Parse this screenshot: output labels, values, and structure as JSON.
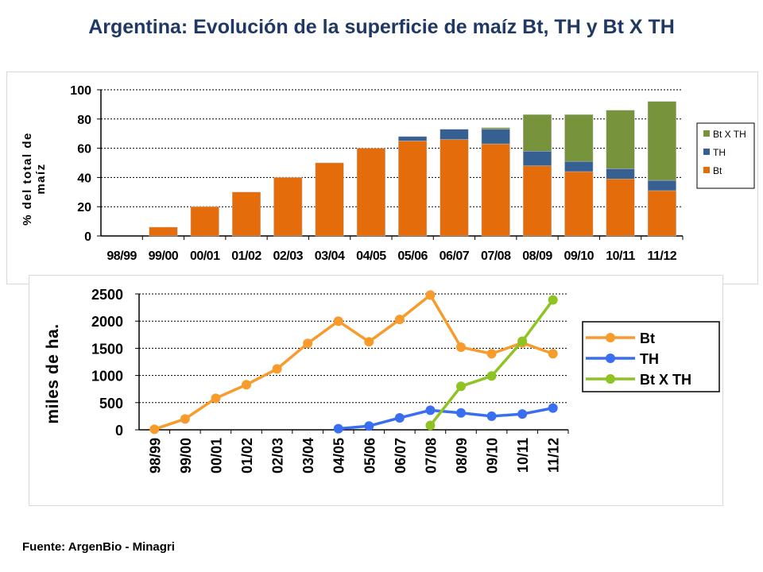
{
  "title": "Argentina: Evolución de la superficie de maíz Bt, TH y Bt X TH",
  "source": "Fuente: ArgenBio - Minagri",
  "colors": {
    "bt_bar": "#e46c0a",
    "th_bar": "#376092",
    "btxth_bar": "#77933c",
    "bt_line": "#f79c2c",
    "th_line": "#3a6ef0",
    "btxth_line": "#8ec324"
  },
  "chart_data": [
    {
      "type": "bar",
      "stacked": true,
      "title": "",
      "ylabel": "% del total de maíz",
      "xlabel": "",
      "ylim": [
        0,
        100
      ],
      "yticks": [
        0,
        20,
        40,
        60,
        80,
        100
      ],
      "grid": true,
      "legend_position": "right",
      "categories": [
        "98/99",
        "99/00",
        "00/01",
        "01/02",
        "02/03",
        "03/04",
        "04/05",
        "05/06",
        "06/07",
        "07/08",
        "08/09",
        "09/10",
        "10/11",
        "11/12"
      ],
      "series": [
        {
          "name": "Bt",
          "values": [
            0,
            6,
            20,
            30,
            40,
            50,
            60,
            65,
            66,
            63,
            48,
            44,
            39,
            31
          ]
        },
        {
          "name": "TH",
          "values": [
            0,
            0,
            0,
            0,
            0,
            0,
            0,
            3,
            7,
            10,
            10,
            7,
            7,
            7
          ]
        },
        {
          "name": "Bt X TH",
          "values": [
            0,
            0,
            0,
            0,
            0,
            0,
            0,
            0,
            0,
            1,
            25,
            32,
            40,
            54
          ]
        }
      ],
      "legend": [
        "Bt X TH",
        "TH",
        "Bt"
      ]
    },
    {
      "type": "line",
      "title": "",
      "ylabel": "miles de ha.",
      "xlabel": "",
      "ylim": [
        0,
        2500
      ],
      "yticks": [
        0,
        500,
        1000,
        1500,
        2000,
        2500
      ],
      "grid": true,
      "legend_position": "right",
      "categories": [
        "98/99",
        "99/00",
        "00/01",
        "01/02",
        "02/03",
        "03/04",
        "04/05",
        "05/06",
        "06/07",
        "07/08",
        "08/09",
        "09/10",
        "10/11",
        "11/12"
      ],
      "series": [
        {
          "name": "Bt",
          "values": [
            10,
            200,
            580,
            830,
            1120,
            1590,
            2000,
            1620,
            2030,
            2480,
            1520,
            1400,
            1600,
            1400
          ]
        },
        {
          "name": "TH",
          "values": [
            null,
            null,
            null,
            null,
            null,
            null,
            20,
            70,
            220,
            360,
            310,
            250,
            290,
            400
          ]
        },
        {
          "name": "Bt X TH",
          "values": [
            null,
            null,
            null,
            null,
            null,
            null,
            null,
            null,
            null,
            80,
            800,
            990,
            1630,
            2390
          ]
        }
      ],
      "legend": [
        "Bt",
        "TH",
        "Bt X TH"
      ]
    }
  ]
}
